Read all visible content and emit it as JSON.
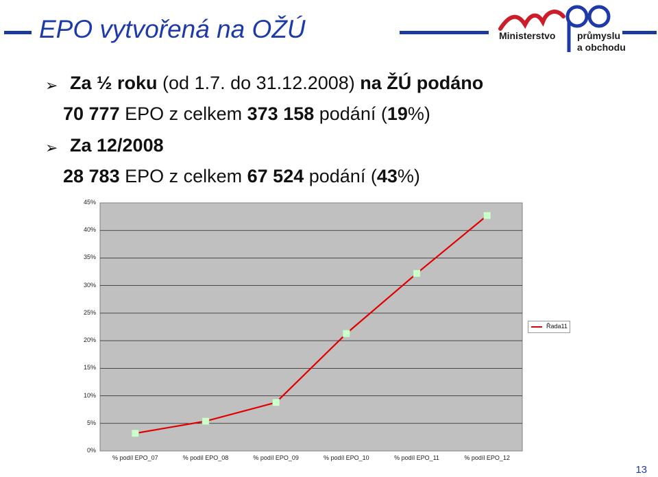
{
  "header": {
    "title": "EPO vytvořená na OŽÚ",
    "logo": {
      "line1": "Ministerstvo",
      "line2": "průmyslu",
      "line3": "a obchodu",
      "mark": "mpo"
    }
  },
  "bullets": [
    {
      "strong_a": "Za ½ roku",
      "normal_a": " (od 1.7. do 31.12.2008) ",
      "strong_b": "na ŽÚ podáno"
    },
    {
      "strong_a": "70 777",
      "normal_a": " EPO z celkem ",
      "strong_b": "373 158",
      "normal_b": " podání (",
      "strong_c": "19",
      "normal_c": "%)"
    },
    {
      "strong_a": "Za 12/2008"
    },
    {
      "strong_a": "28 783",
      "normal_a": " EPO z celkem ",
      "strong_b": "67 524",
      "normal_b": " podání (",
      "strong_c": "43",
      "normal_c": "%)"
    }
  ],
  "chart_data": {
    "type": "line",
    "categories": [
      "% podíl EPO_07",
      "% podíl EPO_08",
      "% podíl EPO_09",
      "% podíl EPO_10",
      "% podíl EPO_11",
      "% podíl EPO_12"
    ],
    "series": [
      {
        "name": "Řada11",
        "values": [
          3.2,
          5.4,
          8.8,
          21.3,
          32.2,
          42.7
        ],
        "color": "#e00000",
        "marker_color": "#ccffcc"
      }
    ],
    "yticks": [
      "0%",
      "5%",
      "10%",
      "15%",
      "20%",
      "25%",
      "30%",
      "35%",
      "40%",
      "45%"
    ],
    "ylim": [
      0,
      45
    ],
    "grid": true,
    "legend_position": "right",
    "plot_background": "#c0c0c0"
  },
  "footer": {
    "page_number": "13"
  },
  "colors": {
    "accent": "#1e3aa8",
    "logo_red": "#cc1d2a"
  }
}
